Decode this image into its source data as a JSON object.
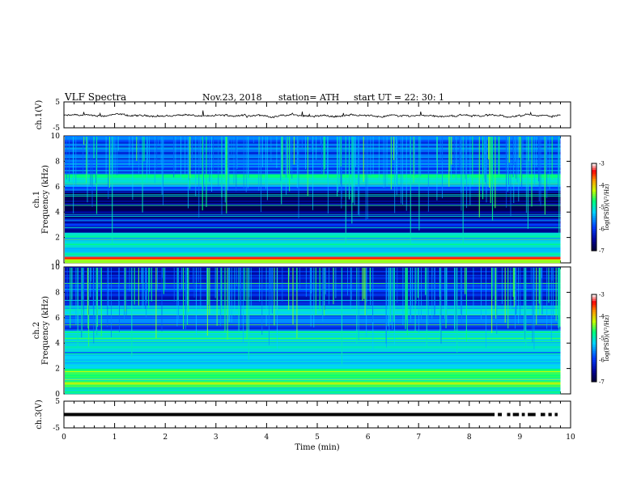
{
  "header": {
    "title": "VLF  Spectra",
    "date": "Nov.23, 2018",
    "station": "station= ATH",
    "start": "start  UT  =    22: 30: 1"
  },
  "chart_data": [
    {
      "type": "line",
      "ylabel": "ch.1(V)",
      "ylim": [
        -5,
        5
      ],
      "yticks": [
        "5",
        "-5"
      ],
      "xlim": [
        0,
        10
      ],
      "mean": -0.3,
      "t_end": 9.8
    },
    {
      "type": "heatmap",
      "ylabel": "ch.1\nFrequency  (kHz)",
      "ylabel_lines": [
        "ch.1",
        "Frequency  (kHz)"
      ],
      "ylim": [
        0,
        10
      ],
      "yticks": [
        "0",
        "2",
        "4",
        "6",
        "8",
        "10"
      ],
      "xlim": [
        0,
        10
      ],
      "t_end": 9.8,
      "colorbar": {
        "label": "log(PSD)(V²/Hz)",
        "range": [
          -7,
          -3
        ],
        "ticks": [
          "-3",
          "-4",
          "-5",
          "-6",
          "-7"
        ]
      },
      "bands": [
        {
          "f": [
            0,
            0.3
          ],
          "level": -4.5
        },
        {
          "f": [
            0.3,
            0.5
          ],
          "level": -3.6
        },
        {
          "f": [
            0.5,
            2.0
          ],
          "level": -5.1
        },
        {
          "f": [
            2.0,
            2.4
          ],
          "level": -4.8
        },
        {
          "f": [
            2.4,
            3.5
          ],
          "level": -6.2
        },
        {
          "f": [
            3.5,
            5.7
          ],
          "level": -6.6
        },
        {
          "f": [
            5.7,
            6.2
          ],
          "level": -5.6
        },
        {
          "f": [
            6.2,
            7.0
          ],
          "level": -5.0
        },
        {
          "f": [
            7.0,
            10.0
          ],
          "level": -5.8
        }
      ]
    },
    {
      "type": "heatmap",
      "ylabel": "ch.2\nFrequency  (kHz)",
      "ylabel_lines": [
        "ch.2",
        "Frequency  (kHz)"
      ],
      "ylim": [
        0,
        10
      ],
      "yticks": [
        "0",
        "2",
        "4",
        "6",
        "8",
        "10"
      ],
      "xlim": [
        0,
        10
      ],
      "t_end": 9.8,
      "colorbar": {
        "label": "log(PSD)(V²/Hz)",
        "range": [
          -7,
          -3
        ],
        "ticks": [
          "-3",
          "-4",
          "-5",
          "-6",
          "-7"
        ]
      },
      "bands": [
        {
          "f": [
            0,
            0.5
          ],
          "level": -4.9
        },
        {
          "f": [
            0.5,
            2.0
          ],
          "level": -4.4
        },
        {
          "f": [
            2.0,
            3.4
          ],
          "level": -5.4
        },
        {
          "f": [
            3.4,
            4.6
          ],
          "level": -5.0
        },
        {
          "f": [
            4.6,
            5.0
          ],
          "level": -4.9
        },
        {
          "f": [
            5.0,
            6.2
          ],
          "level": -5.8
        },
        {
          "f": [
            6.2,
            7.0
          ],
          "level": -5.3
        },
        {
          "f": [
            7.0,
            10.0
          ],
          "level": -6.1
        }
      ]
    },
    {
      "type": "line",
      "ylabel": "ch.3(V)",
      "ylim": [
        -5,
        5
      ],
      "yticks": [
        "5",
        "-5"
      ],
      "xlim": [
        0,
        10
      ],
      "xlabel": "Time  (min)",
      "xticks": [
        "0",
        "1",
        "2",
        "3",
        "4",
        "5",
        "6",
        "7",
        "8",
        "9",
        "10"
      ],
      "value": 0,
      "t_end": 9.8,
      "gaps_start": 8.5
    }
  ]
}
